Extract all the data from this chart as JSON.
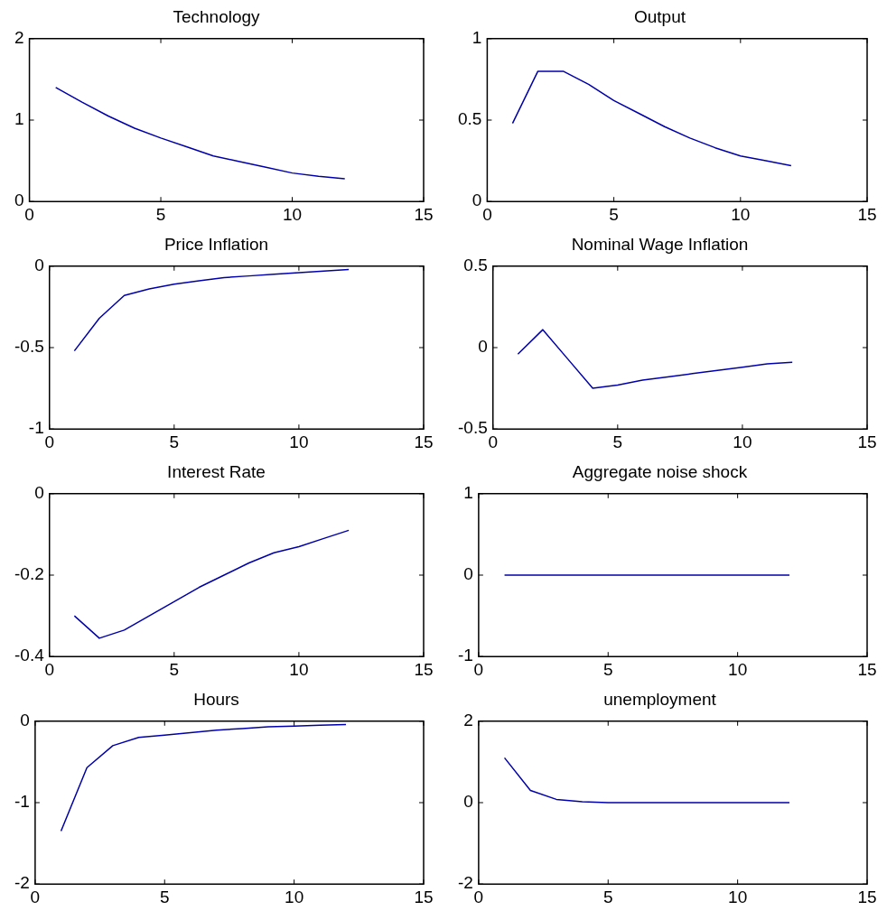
{
  "chart_data": [
    {
      "type": "line",
      "title": "Technology",
      "x": [
        1,
        2,
        3,
        4,
        5,
        6,
        7,
        8,
        9,
        10,
        11,
        12
      ],
      "series": [
        {
          "color": "#0000aa",
          "values": [
            1.4,
            1.22,
            1.05,
            0.9,
            0.78,
            0.67,
            0.56,
            0.49,
            0.42,
            0.35,
            0.31,
            0.28
          ]
        }
      ],
      "xlim": [
        0,
        15
      ],
      "xticks": [
        0,
        5,
        10,
        15
      ],
      "ylim": [
        0,
        2
      ],
      "yticks": [
        0,
        1,
        2
      ],
      "marker": "none"
    },
    {
      "type": "line",
      "title": "Output",
      "x": [
        1,
        2,
        3,
        4,
        5,
        6,
        7,
        8,
        9,
        10,
        11,
        12
      ],
      "series": [
        {
          "color": "#0000aa",
          "values": [
            0.48,
            0.8,
            0.8,
            0.72,
            0.62,
            0.54,
            0.46,
            0.39,
            0.33,
            0.28,
            0.25,
            0.22
          ]
        }
      ],
      "xlim": [
        0,
        15
      ],
      "xticks": [
        0,
        5,
        10,
        15
      ],
      "ylim": [
        0,
        1
      ],
      "yticks": [
        0,
        0.5,
        1
      ],
      "marker": "none"
    },
    {
      "type": "line",
      "title": "Price Inflation",
      "x": [
        1,
        2,
        3,
        4,
        5,
        6,
        7,
        8,
        9,
        10,
        11,
        12
      ],
      "series": [
        {
          "color": "#0000aa",
          "values": [
            -0.52,
            -0.32,
            -0.18,
            -0.14,
            -0.11,
            -0.09,
            -0.07,
            -0.06,
            -0.05,
            -0.04,
            -0.03,
            -0.02
          ]
        }
      ],
      "xlim": [
        0,
        15
      ],
      "xticks": [
        0,
        5,
        10,
        15
      ],
      "ylim": [
        -1,
        0
      ],
      "yticks": [
        -1,
        -0.5,
        0
      ],
      "marker": "none"
    },
    {
      "type": "line",
      "title": "Nominal Wage Inflation",
      "x": [
        1,
        2,
        3,
        4,
        5,
        6,
        7,
        8,
        9,
        10,
        11,
        12
      ],
      "series": [
        {
          "color": "#0000aa",
          "values": [
            -0.04,
            0.11,
            -0.07,
            -0.25,
            -0.23,
            -0.2,
            -0.18,
            -0.16,
            -0.14,
            -0.12,
            -0.1,
            -0.09
          ]
        }
      ],
      "xlim": [
        0,
        15
      ],
      "xticks": [
        0,
        5,
        10,
        15
      ],
      "ylim": [
        -0.5,
        0.5
      ],
      "yticks": [
        -0.5,
        0,
        0.5
      ],
      "marker": "none"
    },
    {
      "type": "line",
      "title": "Interest Rate",
      "x": [
        1,
        2,
        3,
        4,
        5,
        6,
        7,
        8,
        9,
        10,
        11,
        12
      ],
      "series": [
        {
          "color": "#0000aa",
          "values": [
            -0.3,
            -0.355,
            -0.335,
            -0.3,
            -0.265,
            -0.23,
            -0.2,
            -0.17,
            -0.145,
            -0.13,
            -0.11,
            -0.09
          ]
        }
      ],
      "xlim": [
        0,
        15
      ],
      "xticks": [
        0,
        5,
        10,
        15
      ],
      "ylim": [
        -0.4,
        0
      ],
      "yticks": [
        -0.4,
        -0.2,
        0
      ],
      "marker": "none"
    },
    {
      "type": "line",
      "title": "Aggregate noise shock",
      "x": [
        1,
        2,
        3,
        4,
        5,
        6,
        7,
        8,
        9,
        10,
        11,
        12
      ],
      "series": [
        {
          "color": "#0000aa",
          "values": [
            0,
            0,
            0,
            0,
            0,
            0,
            0,
            0,
            0,
            0,
            0,
            0
          ]
        }
      ],
      "xlim": [
        0,
        15
      ],
      "xticks": [
        0,
        5,
        10,
        15
      ],
      "ylim": [
        -1,
        1
      ],
      "yticks": [
        -1,
        0,
        1
      ],
      "marker": "none"
    },
    {
      "type": "line",
      "title": "Hours",
      "x": [
        1,
        2,
        3,
        4,
        5,
        6,
        7,
        8,
        9,
        10,
        11,
        12
      ],
      "series": [
        {
          "color": "#0000aa",
          "values": [
            -1.35,
            -0.57,
            -0.3,
            -0.2,
            -0.17,
            -0.14,
            -0.11,
            -0.09,
            -0.07,
            -0.06,
            -0.05,
            -0.04
          ]
        }
      ],
      "xlim": [
        0,
        15
      ],
      "xticks": [
        0,
        5,
        10,
        15
      ],
      "ylim": [
        -2,
        0
      ],
      "yticks": [
        -2,
        -1,
        0
      ],
      "marker": "none"
    },
    {
      "type": "line",
      "title": "unemployment",
      "x": [
        1,
        2,
        3,
        4,
        5,
        6,
        7,
        8,
        9,
        10,
        11,
        12
      ],
      "series": [
        {
          "color": "#0000aa",
          "values": [
            1.1,
            0.3,
            0.08,
            0.02,
            0,
            0,
            0,
            0,
            0,
            0,
            0,
            0
          ]
        }
      ],
      "xlim": [
        0,
        15
      ],
      "xticks": [
        0,
        5,
        10,
        15
      ],
      "ylim": [
        -2,
        2
      ],
      "yticks": [
        -2,
        0,
        2
      ],
      "marker": "none"
    }
  ]
}
